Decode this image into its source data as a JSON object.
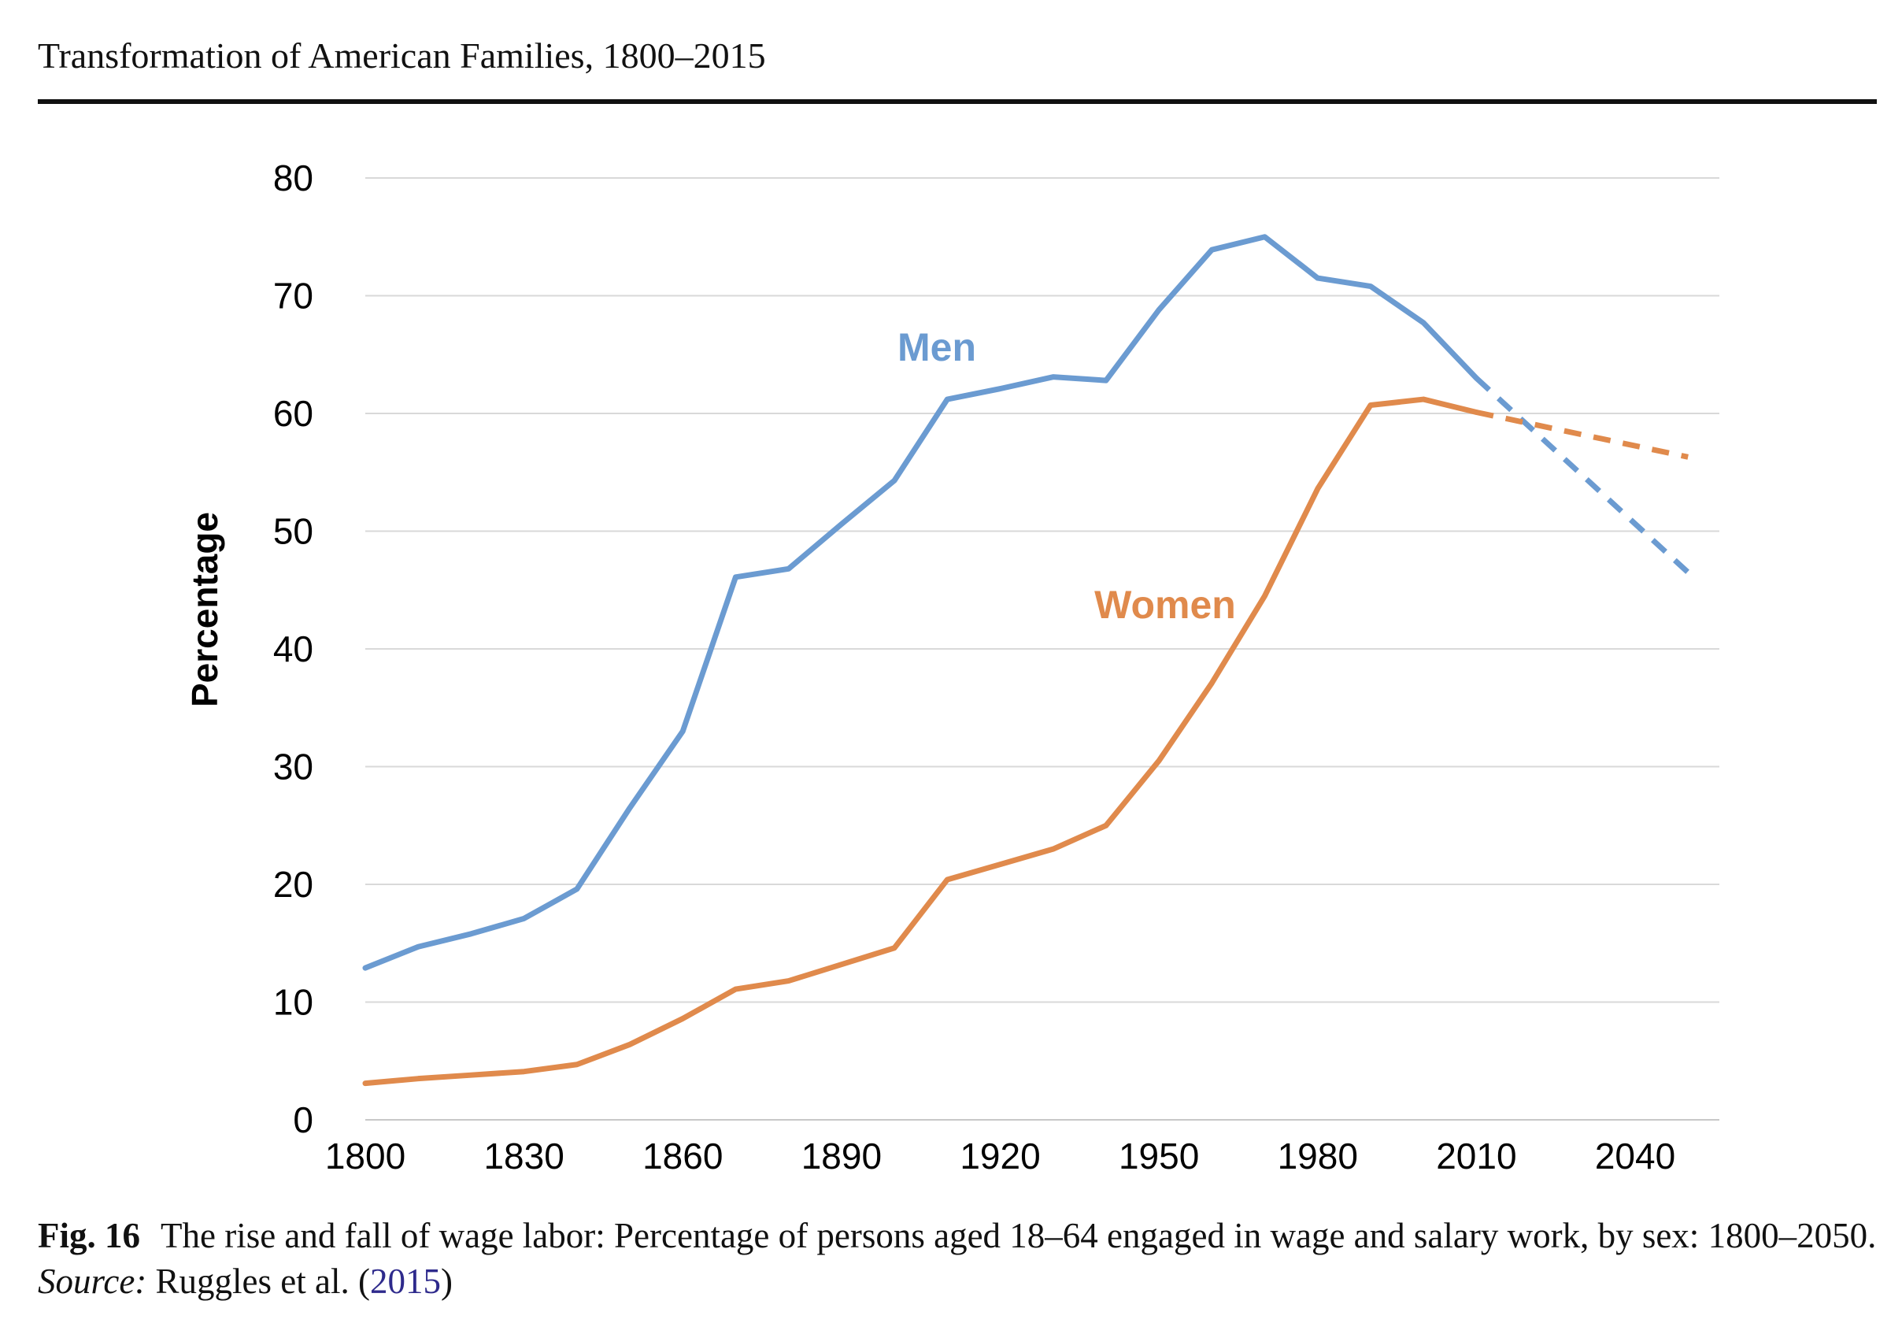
{
  "page": {
    "running_head": "Transformation of American Families, 1800–2015"
  },
  "caption": {
    "label": "Fig. 16",
    "text": "The rise and fall of wage labor: Percentage of persons aged 18–64 engaged in wage and salary work, by sex: 1800–2050. ",
    "source_label": "Source:",
    "source_text": " Ruggles et al. (",
    "citation_year": "2015",
    "closing": ")"
  },
  "chart_data": {
    "type": "line",
    "title": "",
    "xlabel": "",
    "ylabel": "Percentage",
    "xlim": [
      1800,
      2050
    ],
    "ylim": [
      0,
      80
    ],
    "yticks": [
      0,
      10,
      20,
      30,
      40,
      50,
      60,
      70,
      80
    ],
    "xticks": [
      1800,
      1830,
      1860,
      1890,
      1920,
      1950,
      1980,
      2010,
      2040
    ],
    "grid": true,
    "legend": "inline labels",
    "series": [
      {
        "name": "Men",
        "color": "#6b9bd1",
        "x": [
          1800,
          1810,
          1820,
          1830,
          1840,
          1850,
          1860,
          1870,
          1880,
          1890,
          1900,
          1910,
          1920,
          1930,
          1940,
          1950,
          1960,
          1970,
          1980,
          1990,
          2000,
          2010
        ],
        "y": [
          12.9,
          14.7,
          15.8,
          17.1,
          19.6,
          26.5,
          33.0,
          46.1,
          46.8,
          50.6,
          54.3,
          61.2,
          62.1,
          63.1,
          62.8,
          68.8,
          73.9,
          75.0,
          71.5,
          70.8,
          67.7,
          63.0
        ],
        "projection": {
          "x": [
            2010,
            2050
          ],
          "y": [
            63.0,
            46.5
          ],
          "style": "dashed"
        }
      },
      {
        "name": "Women",
        "color": "#e08a4c",
        "x": [
          1800,
          1810,
          1820,
          1830,
          1840,
          1850,
          1860,
          1870,
          1880,
          1890,
          1900,
          1910,
          1920,
          1930,
          1940,
          1950,
          1960,
          1970,
          1980,
          1990,
          2000,
          2010
        ],
        "y": [
          3.1,
          3.5,
          3.8,
          4.1,
          4.7,
          6.4,
          8.6,
          11.1,
          11.8,
          13.2,
          14.6,
          20.4,
          21.7,
          23.0,
          25.0,
          30.5,
          37.1,
          44.5,
          53.6,
          60.7,
          61.2,
          60.1
        ],
        "projection": {
          "x": [
            2010,
            2050
          ],
          "y": [
            60.1,
            56.3
          ],
          "style": "dashed"
        }
      }
    ]
  }
}
